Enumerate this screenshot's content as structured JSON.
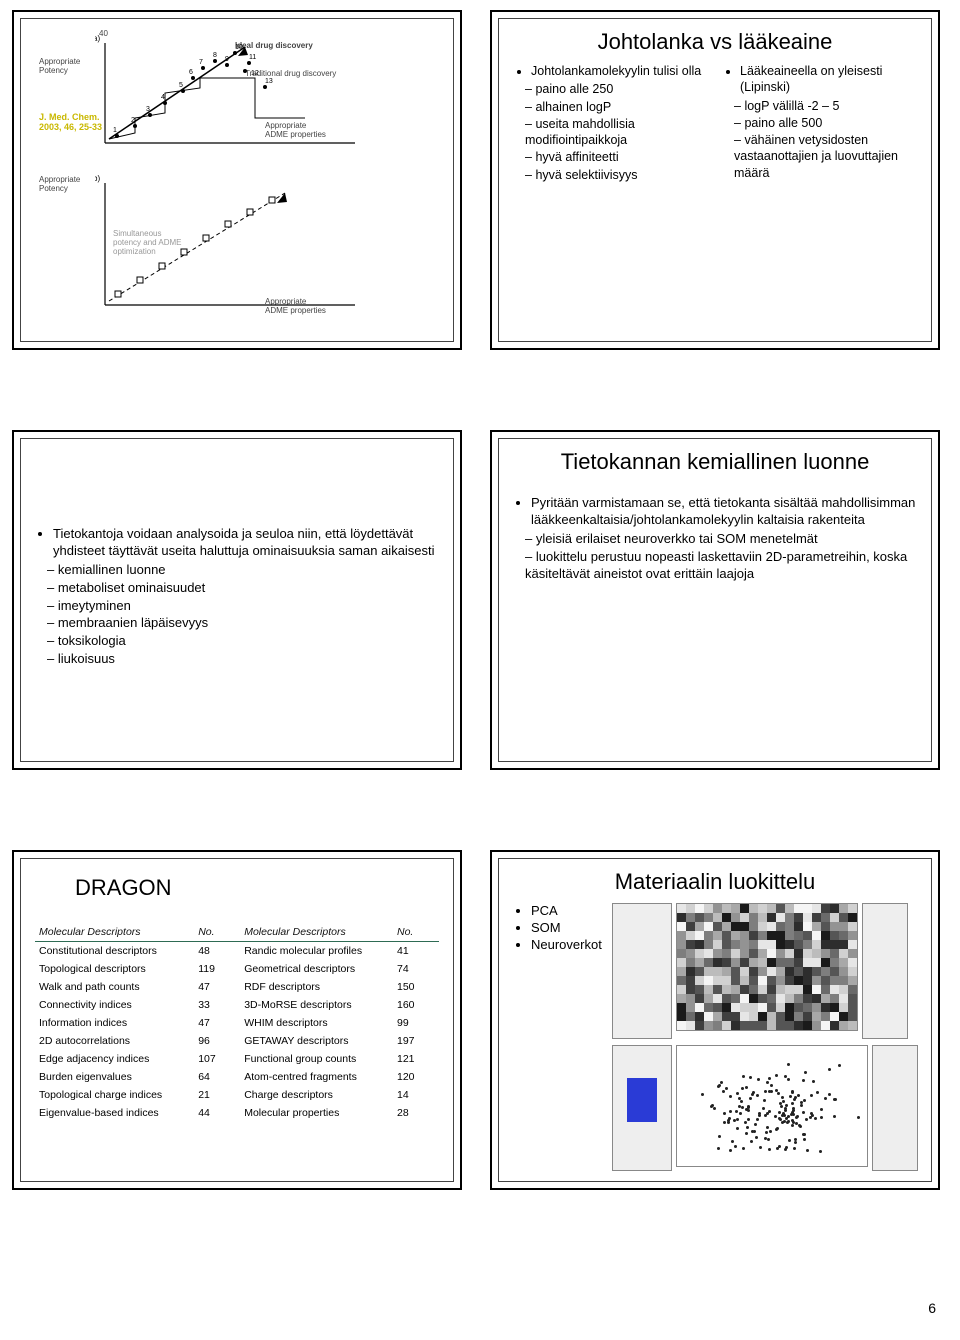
{
  "slide1": {
    "ref_line1": "J. Med. Chem.",
    "ref_line2": "2003, 46, 25-33",
    "axis_top": "40",
    "label_left_a": "Appropriate\nPotency",
    "label_left_b": "Appropriate\nPotency",
    "label_ideal": "Ideal drug discovery",
    "label_trad": "Traditional drug discovery",
    "label_adme_a": "Appropriate\nADME properties",
    "label_opt": "Simultaneous\npotency and ADME\noptimization",
    "label_adme_b": "Appropriate\nADME properties",
    "nums": [
      "1",
      "2",
      "3",
      "4",
      "5",
      "6",
      "7",
      "8",
      "9",
      "10",
      "11",
      "12",
      "13"
    ]
  },
  "slide2": {
    "title": "Johtolanka vs lääkeaine",
    "left_head": "Johtolankamolekyylin tulisi olla",
    "left_items": [
      "paino alle 250",
      "alhainen logP",
      "useita mahdollisia modifiointipaikkoja",
      "hyvä affiniteetti",
      "hyvä selektiivisyys"
    ],
    "right_head": "Lääkeaineella on yleisesti (Lipinski)",
    "right_items": [
      "logP välillä -2 – 5",
      "paino alle 500",
      "vähäinen vetysidosten vastaanottajien ja luovuttajien määrä"
    ]
  },
  "slide3": {
    "head": "Tietokantoja voidaan analysoida ja seuloa niin, että löydettävät yhdisteet täyttävät useita haluttuja ominaisuuksia saman aikaisesti",
    "items": [
      "kemiallinen luonne",
      "metaboliset ominaisuudet",
      "imeytyminen",
      "membraanien läpäisevyys",
      "toksikologia",
      "liukoisuus"
    ]
  },
  "slide4": {
    "title": "Tietokannan kemiallinen luonne",
    "head": "Pyritään varmistamaan se, että tietokanta sisältää mahdollisimman lääkkeenkaltaisia/johtolankamolekyylin kaltaisia rakenteita",
    "items": [
      "yleisiä erilaiset neuroverkko tai SOM menetelmät",
      "luokittelu perustuu nopeasti laskettaviin 2D-parametreihin, koska käsiteltävät aineistot ovat erittäin laajoja"
    ]
  },
  "slide5": {
    "title": "DRAGON",
    "headers": [
      "Molecular Descriptors",
      "No.",
      "Molecular Descriptors",
      "No."
    ],
    "rows": [
      [
        "Constitutional descriptors",
        "48",
        "Randic molecular profiles",
        "41"
      ],
      [
        "Topological descriptors",
        "119",
        "Geometrical descriptors",
        "74"
      ],
      [
        "Walk and path counts",
        "47",
        "RDF descriptors",
        "150"
      ],
      [
        "Connectivity indices",
        "33",
        "3D-MoRSE descriptors",
        "160"
      ],
      [
        "Information indices",
        "47",
        "WHIM descriptors",
        "99"
      ],
      [
        "2D autocorrelations",
        "96",
        "GETAWAY descriptors",
        "197"
      ],
      [
        "Edge adjacency indices",
        "107",
        "Functional group counts",
        "121"
      ],
      [
        "Burden eigenvalues",
        "64",
        "Atom-centred fragments",
        "120"
      ],
      [
        "Topological charge indices",
        "21",
        "Charge descriptors",
        "14"
      ],
      [
        "Eigenvalue-based indices",
        "44",
        "Molecular properties",
        "28"
      ]
    ]
  },
  "slide6": {
    "title": "Materiaalin luokittelu",
    "items": [
      "PCA",
      "SOM",
      "Neuroverkot"
    ],
    "som_colors": [
      "#1a1a1a",
      "#2d2d2d",
      "#3f3f3f",
      "#555",
      "#6a6a6a",
      "#7e7e7e",
      "#939393",
      "#a8a8a8",
      "#bcbcbc",
      "#d1d1d1",
      "#e6e6e6",
      "#f5f5f5"
    ],
    "scatter_n": 160
  },
  "page_number": "6"
}
